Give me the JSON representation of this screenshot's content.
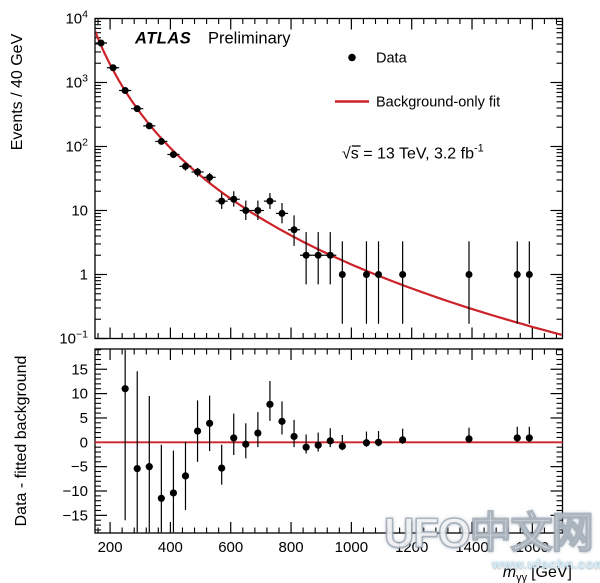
{
  "figure": {
    "atlas": "ATLAS",
    "status": "Preliminary",
    "legend_data": "Data",
    "legend_fit": "Background-only fit",
    "lumi_main": "√s = 13 TeV, 3.2 fb",
    "lumi_sup": "-1",
    "xtitle": {
      "base": "m",
      "sub": "γγ",
      "unit": "[GeV]"
    },
    "colors": {
      "fit": "#cc2229",
      "marker": "#000000",
      "axis": "#000000"
    }
  },
  "watermark": {
    "title": "UFO中文网",
    "url": "www.ufochn.com"
  },
  "chart_data": [
    {
      "type": "scatter",
      "title": "",
      "ylabel": "Events / 40 GeV",
      "xlabel": "m_gammagamma [GeV]",
      "y_scale": "log",
      "x_range": [
        150,
        1700
      ],
      "y_range": [
        0.1,
        10000
      ],
      "bin_width_gev": 40,
      "grid": false,
      "legend_position": "top-center-inside",
      "legend": [
        "Data",
        "Background-only fit"
      ],
      "xticks": [
        200,
        400,
        600,
        800,
        1000,
        1200,
        1400,
        1600
      ],
      "ytick_values": [
        10000,
        1000,
        100,
        10,
        1,
        0.1
      ],
      "ytick_labels": [
        "10^4",
        "10^3",
        "10^2",
        "10",
        "1",
        "10^-1"
      ],
      "points_comment": "[m_gev, events, err_low, err_high]",
      "points": [
        [
          170,
          4140,
          64,
          64
        ],
        [
          210,
          1700,
          41,
          41
        ],
        [
          250,
          750,
          27,
          27
        ],
        [
          290,
          390,
          20,
          20
        ],
        [
          330,
          210,
          14.5,
          14.5
        ],
        [
          370,
          120,
          11,
          11
        ],
        [
          410,
          75,
          8.7,
          8.7
        ],
        [
          450,
          49,
          7,
          7
        ],
        [
          490,
          40,
          6.3,
          6.3
        ],
        [
          530,
          33,
          5.7,
          5.7
        ],
        [
          570,
          14,
          3.4,
          4.8
        ],
        [
          610,
          15,
          3.5,
          5.0
        ],
        [
          650,
          10,
          2.9,
          4.3
        ],
        [
          690,
          10,
          2.9,
          4.3
        ],
        [
          730,
          14,
          3.4,
          4.8
        ],
        [
          770,
          9,
          2.7,
          4.1
        ],
        [
          810,
          5,
          2.2,
          3.4
        ],
        [
          850,
          2,
          1.3,
          2.6
        ],
        [
          890,
          2,
          1.3,
          2.6
        ],
        [
          930,
          2,
          1.3,
          2.6
        ],
        [
          970,
          1,
          0.83,
          2.3
        ],
        [
          1050,
          1,
          0.83,
          2.3
        ],
        [
          1090,
          1,
          0.83,
          2.3
        ],
        [
          1170,
          1,
          0.83,
          2.3
        ],
        [
          1390,
          1,
          0.83,
          2.3
        ],
        [
          1550,
          1,
          0.83,
          2.3
        ],
        [
          1590,
          1,
          0.83,
          2.3
        ]
      ],
      "fit_curve": {
        "form": "log10(y) = a + b*t + c*t^2, t = log10(x/x0)",
        "a": 2.869,
        "b": -4.3004,
        "c": -0.339,
        "x0": 250,
        "xmin": 150,
        "xmax": 1700
      }
    },
    {
      "type": "scatter",
      "ylabel": "Data - fitted background",
      "x_range": [
        150,
        1700
      ],
      "y_range": [
        -18.6,
        19.2
      ],
      "yticks": [
        -15,
        -10,
        -5,
        0,
        5,
        10,
        15
      ],
      "ytick_labels": [
        "−15",
        "−10",
        "−5",
        "0",
        "5",
        "10",
        "15"
      ],
      "zero_line": 0,
      "points_comment": "[m_gev, residual, err_low, err_high]",
      "points": [
        [
          250,
          11.0,
          27,
          27
        ],
        [
          290,
          -5.4,
          20,
          20
        ],
        [
          330,
          -5.0,
          14.5,
          14.5
        ],
        [
          370,
          -11.5,
          11,
          11
        ],
        [
          410,
          -10.4,
          8.7,
          8.7
        ],
        [
          450,
          -6.9,
          7,
          7
        ],
        [
          490,
          2.3,
          6.3,
          6.3
        ],
        [
          530,
          3.9,
          5.7,
          5.7
        ],
        [
          570,
          -5.3,
          3.4,
          4.8
        ],
        [
          610,
          0.9,
          3.5,
          5.0
        ],
        [
          650,
          -0.4,
          2.9,
          4.3
        ],
        [
          690,
          1.9,
          2.9,
          4.3
        ],
        [
          730,
          7.8,
          3.4,
          4.8
        ],
        [
          770,
          4.3,
          2.7,
          4.1
        ],
        [
          810,
          1.2,
          2.2,
          3.4
        ],
        [
          850,
          -1.0,
          1.3,
          2.6
        ],
        [
          890,
          -0.6,
          1.3,
          2.6
        ],
        [
          930,
          0.3,
          1.3,
          2.6
        ],
        [
          970,
          -0.8,
          0.83,
          2.3
        ],
        [
          1050,
          -0.1,
          0.83,
          2.3
        ],
        [
          1090,
          0.0,
          0.83,
          2.3
        ],
        [
          1170,
          0.5,
          0.83,
          2.3
        ],
        [
          1390,
          0.7,
          0.83,
          2.3
        ],
        [
          1550,
          0.9,
          0.83,
          2.3
        ],
        [
          1590,
          0.9,
          0.83,
          2.3
        ]
      ]
    }
  ]
}
